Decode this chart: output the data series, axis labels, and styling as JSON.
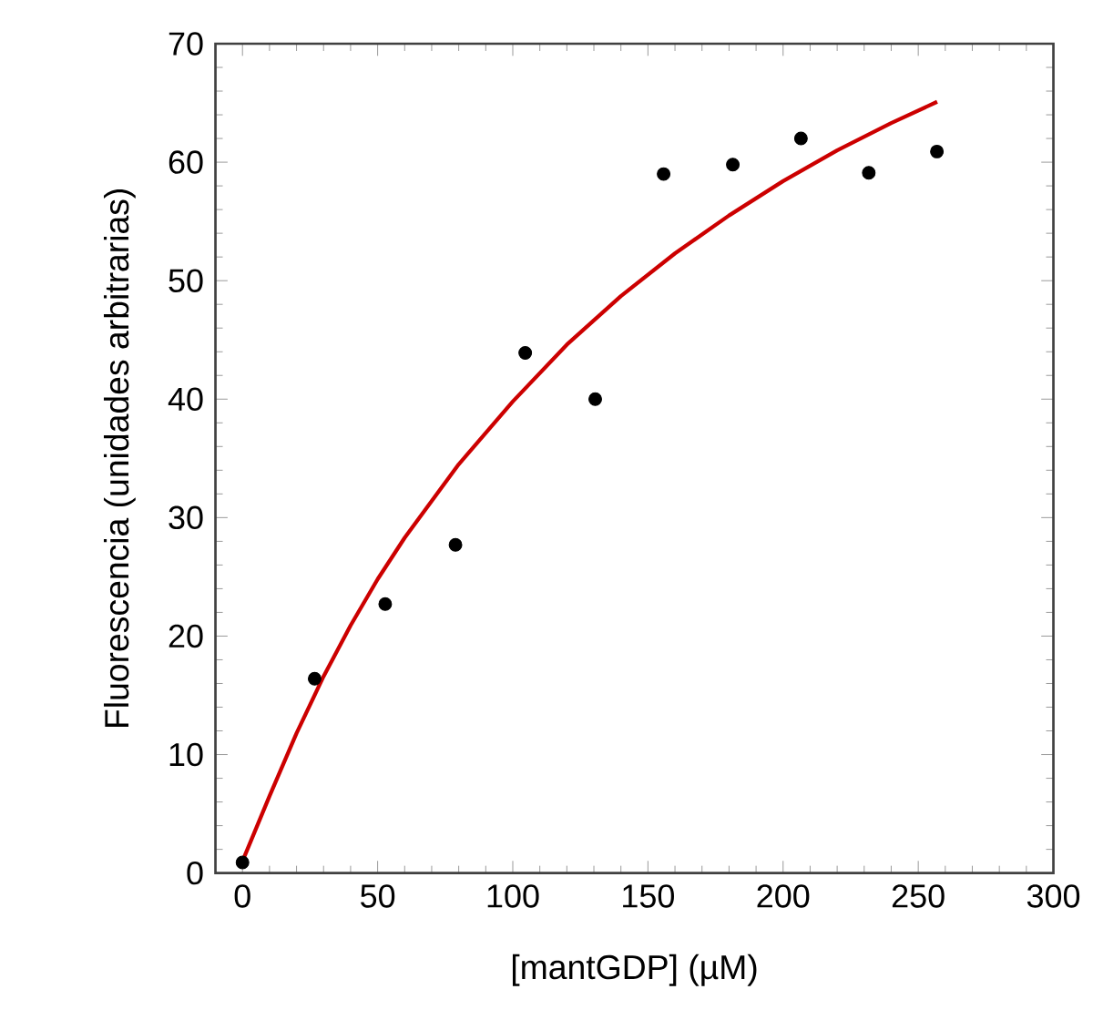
{
  "chart_data": {
    "type": "scatter",
    "xlabel": "[mantGDP] (µM)",
    "ylabel": "Fluorescencia (unidades arbitrarias)",
    "xlim": [
      -10,
      300
    ],
    "ylim": [
      0,
      70
    ],
    "xticks": [
      0,
      50,
      100,
      150,
      200,
      250,
      300
    ],
    "yticks": [
      0,
      10,
      20,
      30,
      40,
      50,
      60,
      70
    ],
    "series": [
      {
        "color": "#000000",
        "marker": "circle",
        "x": [
          0,
          26.7,
          52.8,
          78.8,
          104.6,
          130.5,
          155.8,
          181.4,
          206.6,
          231.7,
          256.9
        ],
        "values": [
          0.9,
          16.4,
          22.7,
          27.7,
          43.9,
          40.0,
          59.0,
          59.8,
          62.0,
          59.1,
          60.9
        ]
      },
      {
        "type": "line",
        "color": "#cc0000",
        "marker": "none",
        "line_style": "solid",
        "x": [
          0,
          10,
          20,
          30,
          40,
          50,
          60,
          80,
          100,
          120,
          140,
          160,
          180,
          200,
          220,
          240,
          257
        ],
        "values": [
          1.0,
          6.5,
          11.8,
          16.6,
          20.9,
          24.8,
          28.3,
          34.5,
          39.8,
          44.6,
          48.7,
          52.3,
          55.5,
          58.4,
          61.0,
          63.3,
          65.1
        ]
      }
    ]
  }
}
